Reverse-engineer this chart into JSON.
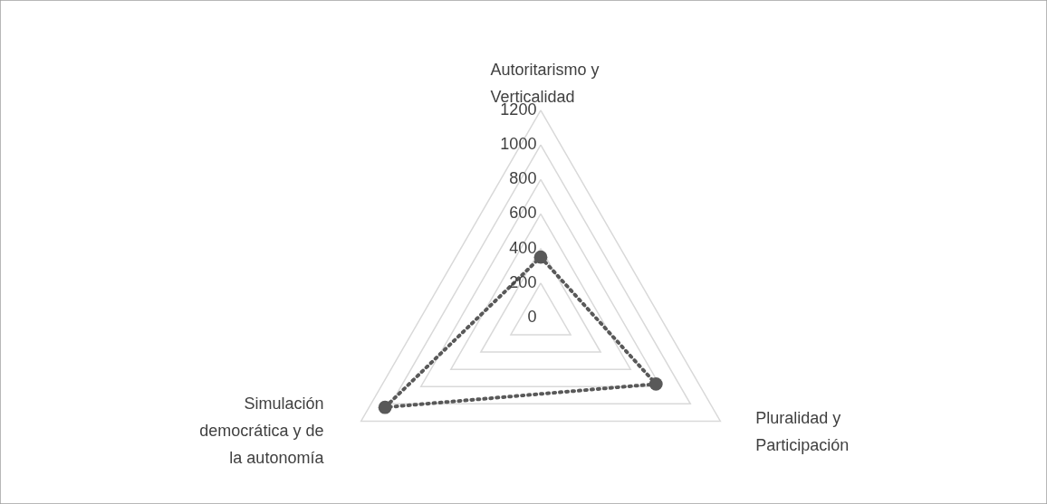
{
  "chart_data": {
    "type": "radar",
    "categories": [
      "Autoritarismo y Verticalidad",
      "Pluralidad y Participación",
      "Simulación democrática y de la autonomía"
    ],
    "series": [
      {
        "color": "#595959",
        "values": [
          350,
          770,
          1040
        ]
      }
    ],
    "ylim": [
      0,
      1200
    ],
    "yticks": [
      0,
      200,
      400,
      600,
      800,
      1000,
      1200
    ],
    "grid": true,
    "marker": "circle",
    "line_style": "dotted"
  }
}
